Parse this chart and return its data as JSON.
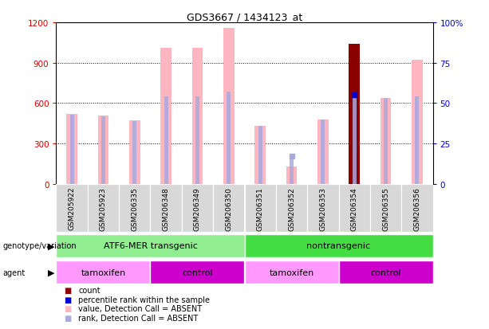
{
  "title": "GDS3667 / 1434123_at",
  "samples": [
    "GSM205922",
    "GSM205923",
    "GSM206335",
    "GSM206348",
    "GSM206349",
    "GSM206350",
    "GSM206351",
    "GSM206352",
    "GSM206353",
    "GSM206354",
    "GSM206355",
    "GSM206356"
  ],
  "pink_bar_values": [
    520,
    510,
    470,
    1010,
    1010,
    1160,
    430,
    130,
    480,
    0,
    640,
    920
  ],
  "dark_red_value": 1040,
  "dark_red_idx": 9,
  "blue_rank_values": [
    43,
    42,
    39,
    54,
    54,
    57,
    36,
    17,
    40,
    55,
    53,
    54
  ],
  "blue_dot_indices": [
    9
  ],
  "blue_dot_rank_values": [
    55
  ],
  "absent_rank_idx": 7,
  "absent_rank_val": 17,
  "ylim_left": [
    0,
    1200
  ],
  "ylim_right": [
    0,
    100
  ],
  "yticks_left": [
    0,
    300,
    600,
    900,
    1200
  ],
  "yticks_right": [
    0,
    25,
    50,
    75,
    100
  ],
  "left_label_color": "#CC0000",
  "right_label_color": "#0000CC",
  "pink_color": "#FFB6C1",
  "light_blue_color": "#AAAADD",
  "dark_red_color": "#8B0000",
  "blue_color": "#0000CD",
  "bg_color": "#FFFFFF",
  "geno_group1_color": "#90EE90",
  "geno_group2_color": "#44DD44",
  "agent_tamoxifen_color": "#FF99FF",
  "agent_control_color": "#CC00CC",
  "agent_tamoxifen2_color": "#FF99FF",
  "grey_col_color": "#D8D8D8",
  "legend_square_size": 7,
  "bar_width": 0.35
}
